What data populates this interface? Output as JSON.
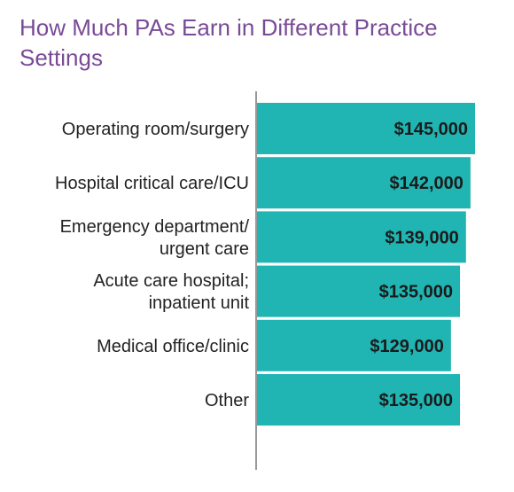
{
  "chart_data": {
    "type": "bar",
    "orientation": "horizontal",
    "title": "How Much PAs Earn in Different Practice Settings",
    "categories": [
      [
        "Operating room/surgery"
      ],
      [
        "Hospital critical care/ICU"
      ],
      [
        "Emergency department/",
        "urgent care"
      ],
      [
        "Acute care hospital;",
        "inpatient unit"
      ],
      [
        "Medical office/clinic"
      ],
      [
        "Other"
      ]
    ],
    "values": [
      145000,
      142000,
      139000,
      135000,
      129000,
      135000
    ],
    "value_labels": [
      "$145,000",
      "$142,000",
      "$139,000",
      "$135,000",
      "$129,000",
      "$135,000"
    ],
    "bar_color": "#20b5b3",
    "title_color": "#7a4a96",
    "xlim": [
      0,
      145000
    ],
    "grid": false
  }
}
